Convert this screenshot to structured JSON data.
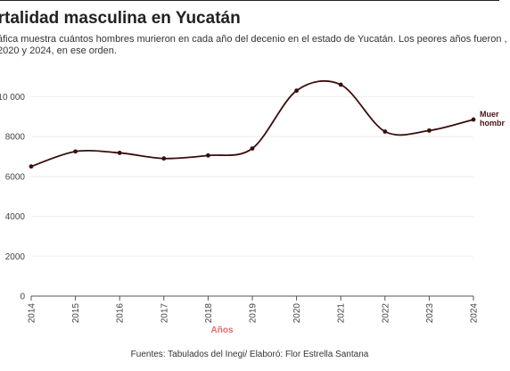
{
  "header": {
    "title": "ortalidad masculina en Yucatán",
    "subtitle": "áfica muestra cuántos hombres murieron en cada año del decenio en el estado de Yucatán. Los peores años fueron , 2020 y 2024, en ese orden."
  },
  "footer": {
    "source": "Fuentes: Tabulados del Inegi/ Elaboró: Flor Estrella Santana"
  },
  "colors": {
    "line": "#3a0d0d",
    "axis_title": "#e46a6a",
    "grid": "#eeeeee"
  },
  "chart_data": {
    "type": "line",
    "xlabel": "Años",
    "ylabel": "",
    "ylim": [
      0,
      11000
    ],
    "yticks": [
      0,
      2000,
      4000,
      6000,
      8000,
      10000
    ],
    "ytick_labels": [
      "0",
      "2000",
      "4000",
      "6000",
      "8000",
      "10 000"
    ],
    "grid": true,
    "x": [
      2014,
      2015,
      2016,
      2017,
      2018,
      2019,
      2020,
      2021,
      2022,
      2023,
      2024
    ],
    "series": [
      {
        "name": "Muer hombr",
        "label_lines": [
          "Muer",
          "hombr"
        ],
        "values": [
          6500,
          7250,
          7180,
          6900,
          7050,
          7400,
          10300,
          10600,
          8250,
          8300,
          8850
        ]
      }
    ]
  }
}
